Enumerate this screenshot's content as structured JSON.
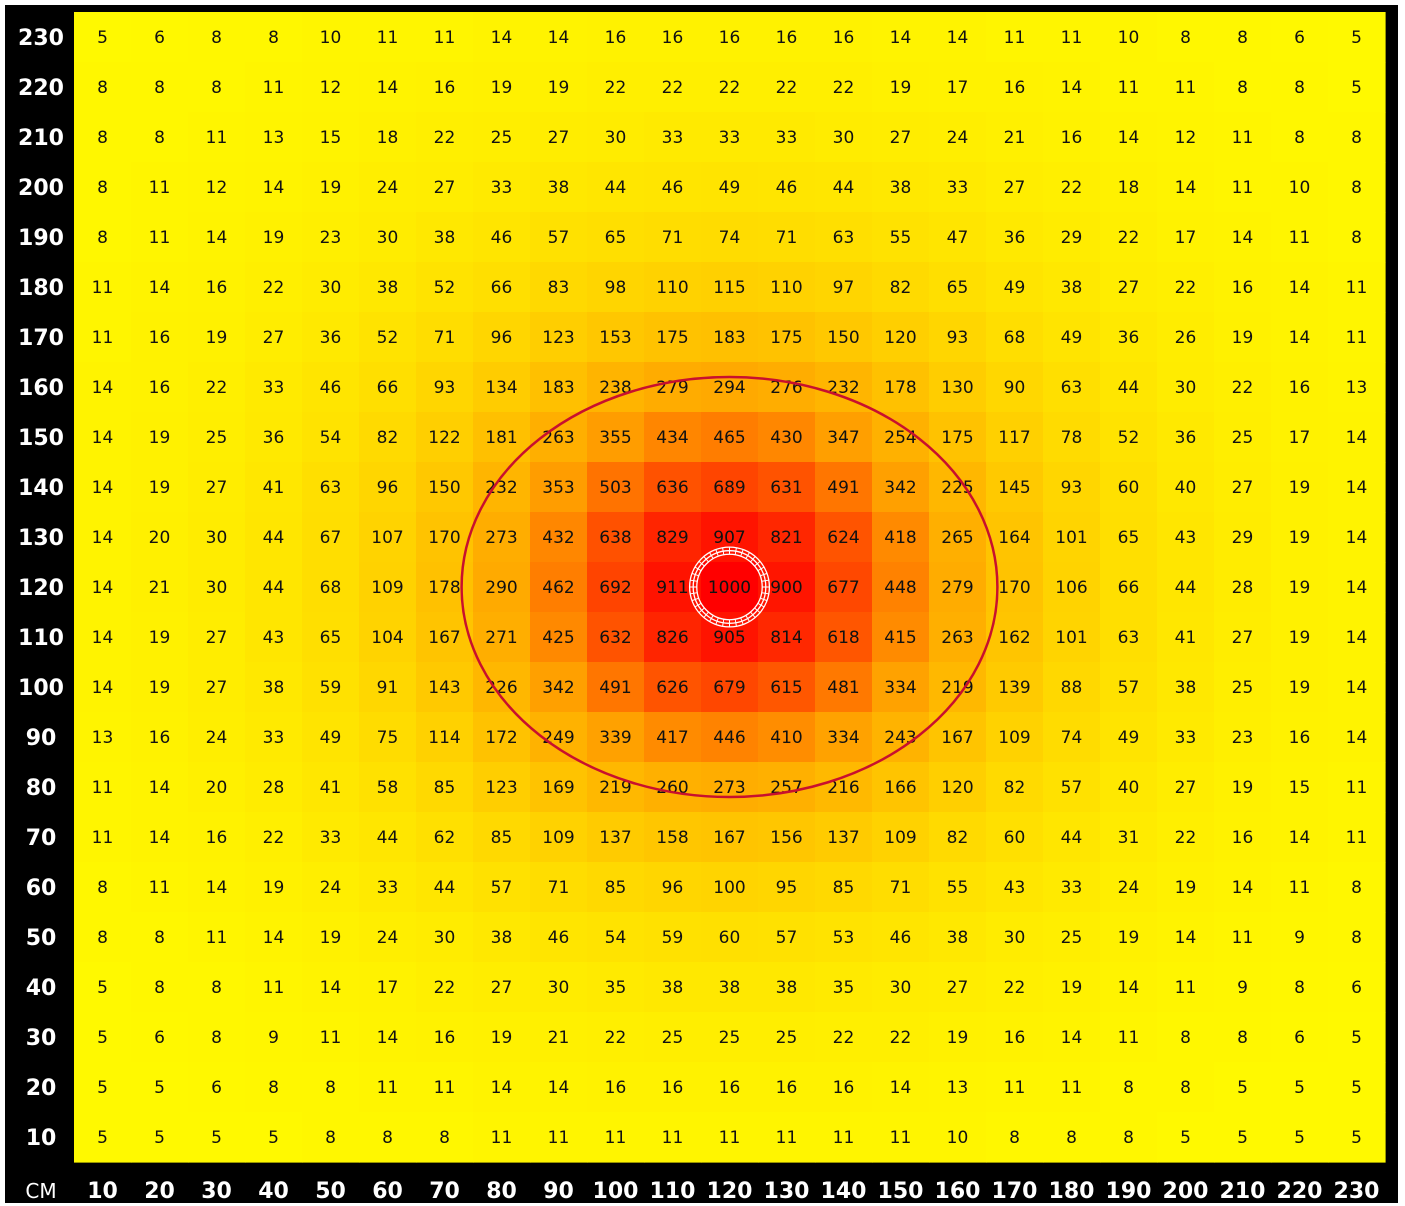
{
  "chart_data": {
    "type": "heatmap",
    "title": "",
    "unit_label": "CM",
    "x": [
      10,
      20,
      30,
      40,
      50,
      60,
      70,
      80,
      90,
      100,
      110,
      120,
      130,
      140,
      150,
      160,
      170,
      180,
      190,
      200,
      210,
      220,
      230
    ],
    "y": [
      230,
      220,
      210,
      200,
      190,
      180,
      170,
      160,
      150,
      140,
      130,
      120,
      110,
      100,
      90,
      80,
      70,
      60,
      50,
      40,
      30,
      20,
      10
    ],
    "values": [
      [
        5,
        6,
        8,
        8,
        10,
        11,
        11,
        14,
        14,
        16,
        16,
        16,
        16,
        16,
        14,
        14,
        11,
        11,
        10,
        8,
        8,
        6,
        5
      ],
      [
        8,
        8,
        8,
        11,
        12,
        14,
        16,
        19,
        19,
        22,
        22,
        22,
        22,
        22,
        19,
        17,
        16,
        14,
        11,
        11,
        8,
        8,
        5
      ],
      [
        8,
        8,
        11,
        13,
        15,
        18,
        22,
        25,
        27,
        30,
        33,
        33,
        33,
        30,
        27,
        24,
        21,
        16,
        14,
        12,
        11,
        8,
        8
      ],
      [
        8,
        11,
        12,
        14,
        19,
        24,
        27,
        33,
        38,
        44,
        46,
        49,
        46,
        44,
        38,
        33,
        27,
        22,
        18,
        14,
        11,
        10,
        8
      ],
      [
        8,
        11,
        14,
        19,
        23,
        30,
        38,
        46,
        57,
        65,
        71,
        74,
        71,
        63,
        55,
        47,
        36,
        29,
        22,
        17,
        14,
        11,
        8
      ],
      [
        11,
        14,
        16,
        22,
        30,
        38,
        52,
        66,
        83,
        98,
        110,
        115,
        110,
        97,
        82,
        65,
        49,
        38,
        27,
        22,
        16,
        14,
        11
      ],
      [
        11,
        16,
        19,
        27,
        36,
        52,
        71,
        96,
        123,
        153,
        175,
        183,
        175,
        150,
        120,
        93,
        68,
        49,
        36,
        26,
        19,
        14,
        11
      ],
      [
        14,
        16,
        22,
        33,
        46,
        66,
        93,
        134,
        183,
        238,
        279,
        294,
        276,
        232,
        178,
        130,
        90,
        63,
        44,
        30,
        22,
        16,
        13
      ],
      [
        14,
        19,
        25,
        36,
        54,
        82,
        122,
        181,
        263,
        355,
        434,
        465,
        430,
        347,
        254,
        175,
        117,
        78,
        52,
        36,
        25,
        17,
        14
      ],
      [
        14,
        19,
        27,
        41,
        63,
        96,
        150,
        232,
        353,
        503,
        636,
        689,
        631,
        491,
        342,
        225,
        145,
        93,
        60,
        40,
        27,
        19,
        14
      ],
      [
        14,
        20,
        30,
        44,
        67,
        107,
        170,
        273,
        432,
        638,
        829,
        907,
        821,
        624,
        418,
        265,
        164,
        101,
        65,
        43,
        29,
        19,
        14
      ],
      [
        14,
        21,
        30,
        44,
        68,
        109,
        178,
        290,
        462,
        692,
        911,
        1000,
        900,
        677,
        448,
        279,
        170,
        106,
        66,
        44,
        28,
        19,
        14
      ],
      [
        14,
        19,
        27,
        43,
        65,
        104,
        167,
        271,
        425,
        632,
        826,
        905,
        814,
        618,
        415,
        263,
        162,
        101,
        63,
        41,
        27,
        19,
        14
      ],
      [
        14,
        19,
        27,
        38,
        59,
        91,
        143,
        226,
        342,
        491,
        626,
        679,
        615,
        481,
        334,
        219,
        139,
        88,
        57,
        38,
        25,
        19,
        14
      ],
      [
        13,
        16,
        24,
        33,
        49,
        75,
        114,
        172,
        249,
        339,
        417,
        446,
        410,
        334,
        243,
        167,
        109,
        74,
        49,
        33,
        23,
        16,
        14
      ],
      [
        11,
        14,
        20,
        28,
        41,
        58,
        85,
        123,
        169,
        219,
        260,
        273,
        257,
        216,
        166,
        120,
        82,
        57,
        40,
        27,
        19,
        15,
        11
      ],
      [
        11,
        14,
        16,
        22,
        33,
        44,
        62,
        85,
        109,
        137,
        158,
        167,
        156,
        137,
        109,
        82,
        60,
        44,
        31,
        22,
        16,
        14,
        11
      ],
      [
        8,
        11,
        14,
        19,
        24,
        33,
        44,
        57,
        71,
        85,
        96,
        100,
        95,
        85,
        71,
        55,
        43,
        33,
        24,
        19,
        14,
        11,
        8
      ],
      [
        8,
        8,
        11,
        14,
        19,
        24,
        30,
        38,
        46,
        54,
        59,
        60,
        57,
        53,
        46,
        38,
        30,
        25,
        19,
        14,
        11,
        9,
        8
      ],
      [
        5,
        8,
        8,
        11,
        14,
        17,
        22,
        27,
        30,
        35,
        38,
        38,
        38,
        35,
        30,
        27,
        22,
        19,
        14,
        11,
        9,
        8,
        6
      ],
      [
        5,
        6,
        8,
        9,
        11,
        14,
        16,
        19,
        21,
        22,
        25,
        25,
        25,
        22,
        22,
        19,
        16,
        14,
        11,
        8,
        8,
        6,
        5
      ],
      [
        5,
        5,
        6,
        8,
        8,
        11,
        11,
        14,
        14,
        16,
        16,
        16,
        16,
        16,
        14,
        13,
        11,
        11,
        8,
        8,
        5,
        5,
        5
      ],
      [
        5,
        5,
        5,
        5,
        8,
        8,
        8,
        11,
        11,
        11,
        11,
        11,
        11,
        11,
        11,
        10,
        8,
        8,
        8,
        5,
        5,
        5,
        5
      ]
    ],
    "vmin": 0,
    "vmax": 1000,
    "color_scale": [
      "#ffff00",
      "#ffa000",
      "#ff0000"
    ],
    "grid": false,
    "annotations": [
      {
        "shape": "ellipse",
        "color": "#c8102e",
        "center": [
          120,
          120
        ],
        "radius": [
          47,
          42
        ]
      },
      {
        "shape": "fixture-ring",
        "color": "#ffffff",
        "center": [
          120,
          120
        ],
        "radius": [
          7,
          7
        ]
      }
    ]
  }
}
